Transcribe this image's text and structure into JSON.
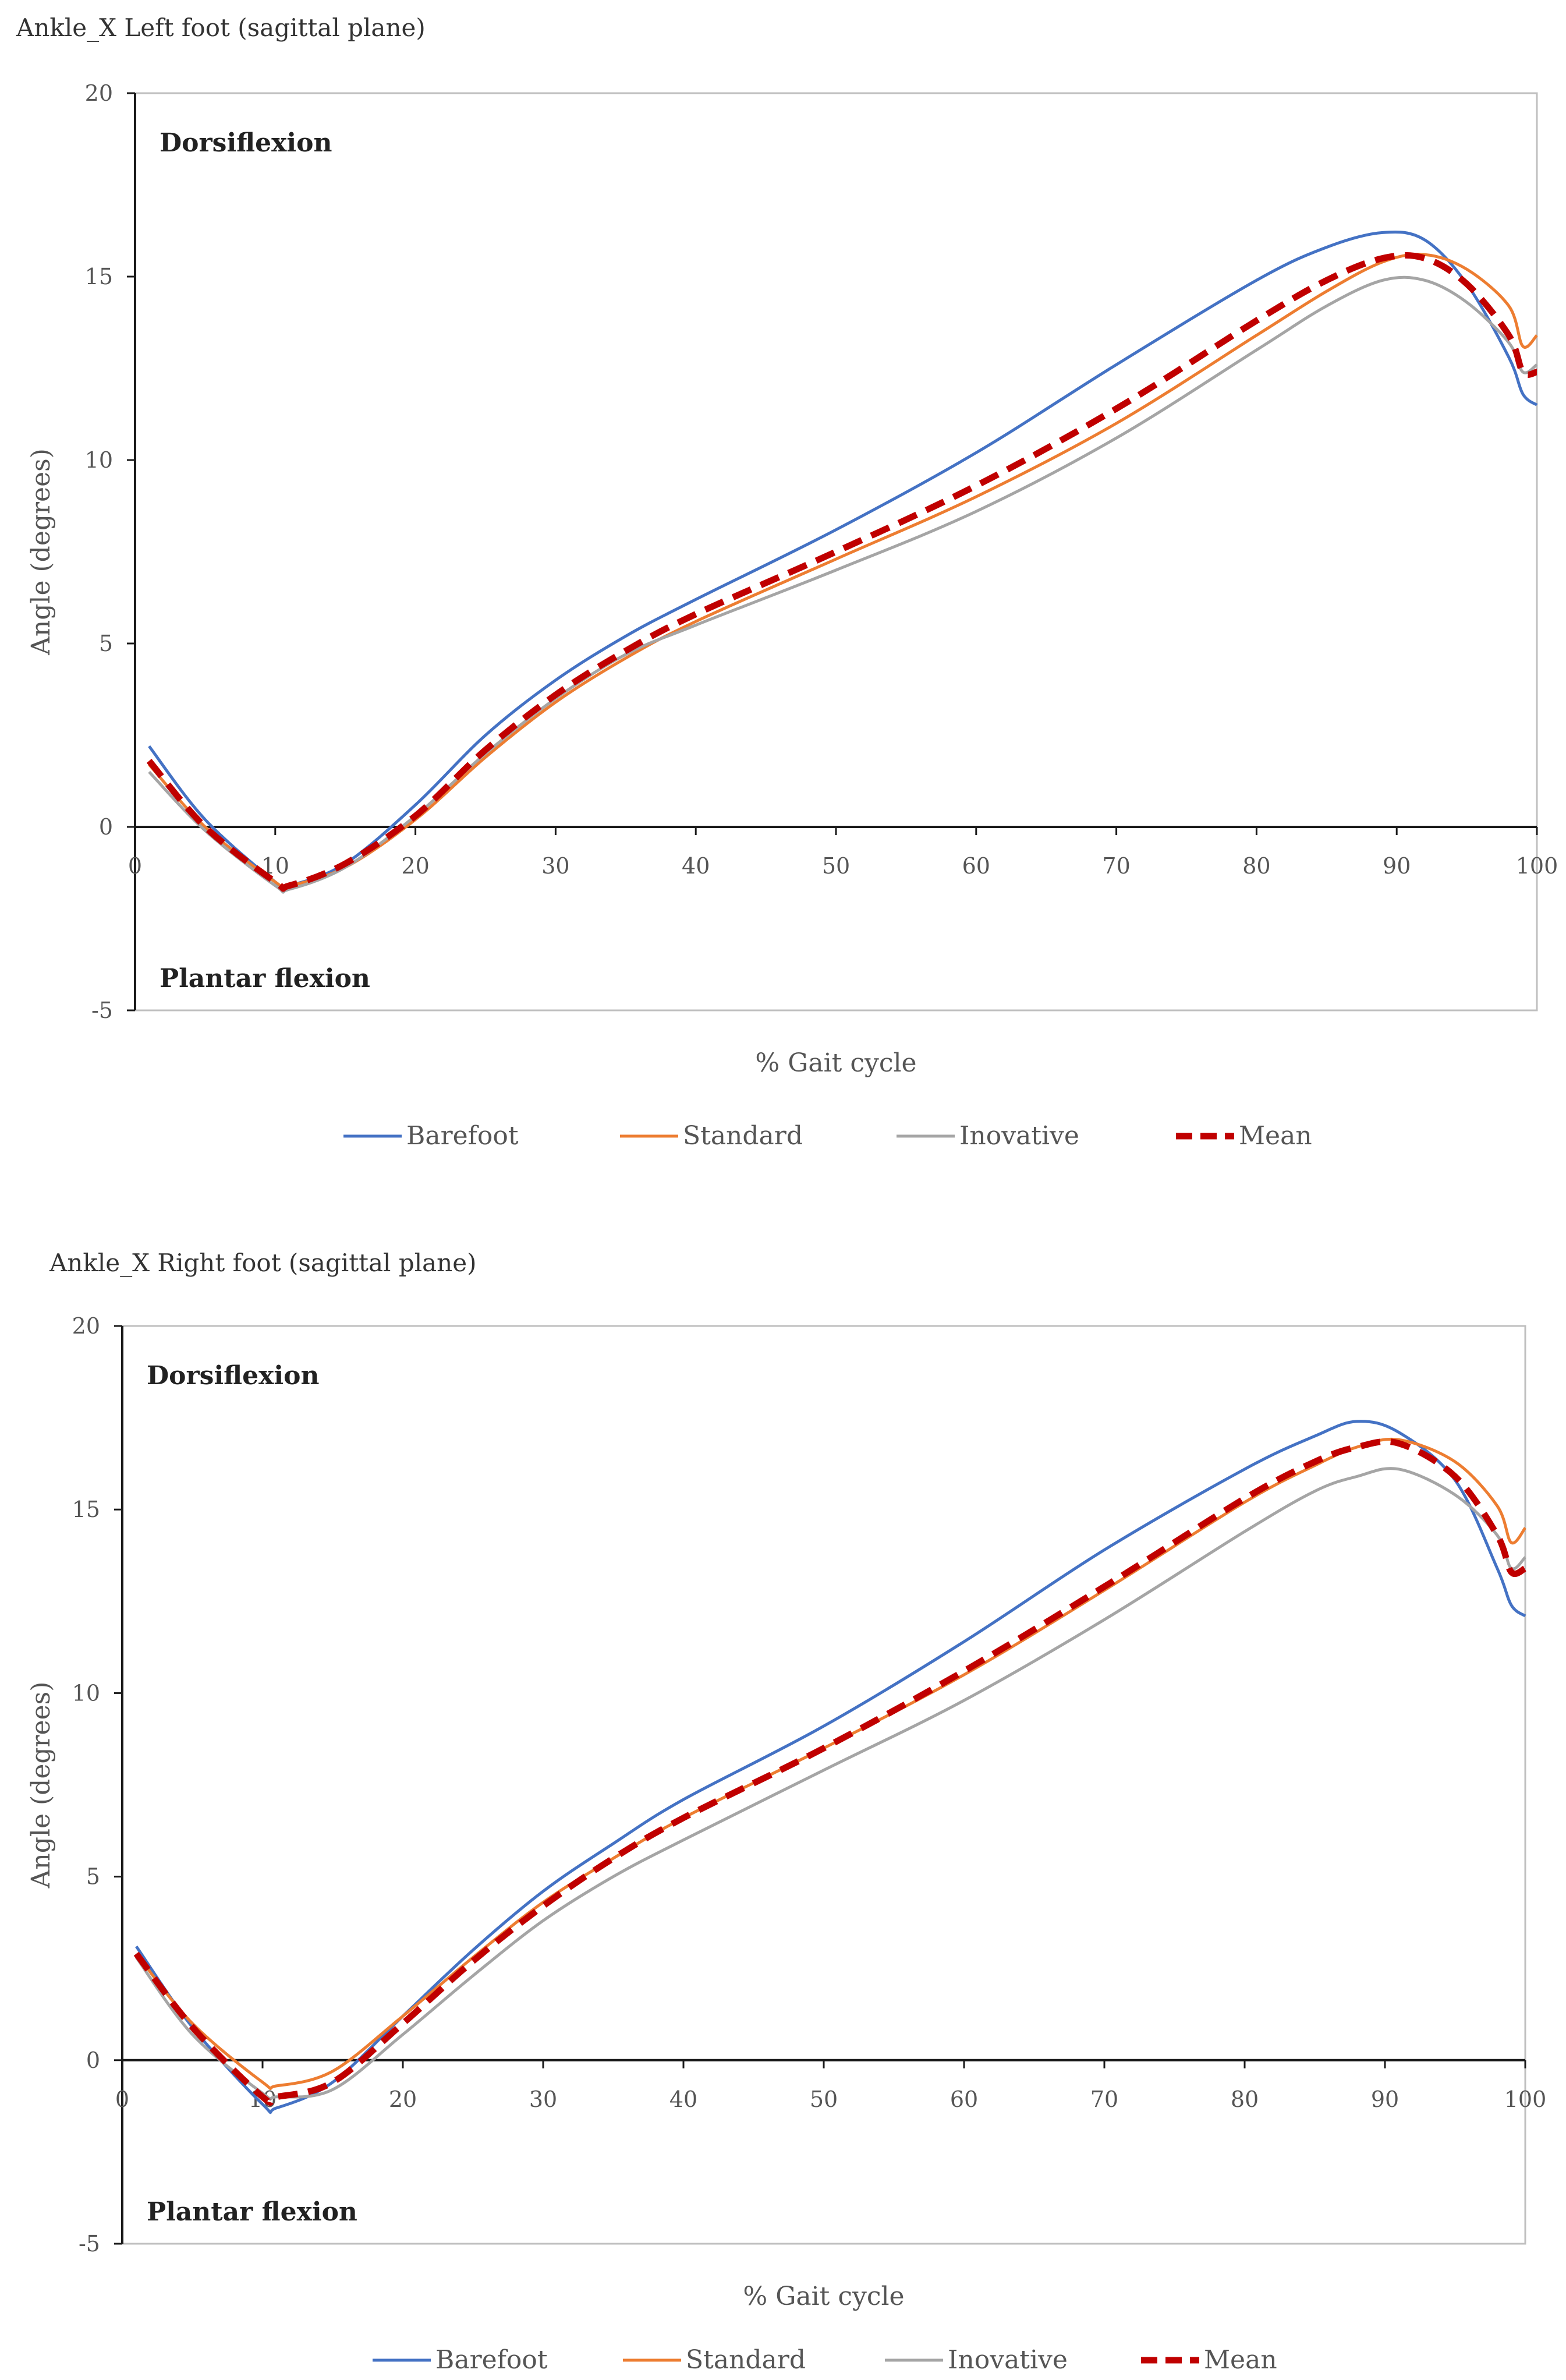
{
  "colors": {
    "Barefoot": "#4472C4",
    "Standard": "#ED7D31",
    "Inovative": "#A5A5A5",
    "Mean": "#C00000"
  },
  "chart_data": [
    {
      "type": "line",
      "title": "Ankle_X Left foot (sagittal plane)",
      "xlabel": "% Gait cycle",
      "ylabel": "Angle (degrees)",
      "xlim": [
        0,
        100
      ],
      "ylim": [
        -5,
        20
      ],
      "xticks": [
        0,
        10,
        20,
        30,
        40,
        50,
        60,
        70,
        80,
        90,
        100
      ],
      "yticks": [
        -5,
        0,
        5,
        10,
        15,
        20
      ],
      "annotations": {
        "top": "Dorsiflexion",
        "bottom": "Plantar flexion"
      },
      "legend_position": "bottom",
      "x": [
        1,
        5,
        10,
        11,
        15,
        20,
        25,
        30,
        35,
        40,
        50,
        60,
        70,
        80,
        85,
        89,
        92,
        95,
        98,
        99,
        100
      ],
      "series": [
        {
          "name": "Barefoot",
          "style": "solid",
          "values": [
            2.2,
            0.2,
            -1.5,
            -1.6,
            -1.0,
            0.6,
            2.5,
            4.0,
            5.2,
            6.2,
            8.1,
            10.2,
            12.6,
            14.9,
            15.8,
            16.2,
            16.0,
            14.8,
            12.8,
            11.8,
            11.5
          ]
        },
        {
          "name": "Standard",
          "style": "solid",
          "values": [
            1.7,
            0.0,
            -1.5,
            -1.6,
            -1.1,
            0.2,
            1.9,
            3.4,
            4.6,
            5.6,
            7.3,
            9.0,
            11.0,
            13.4,
            14.6,
            15.4,
            15.6,
            15.2,
            14.2,
            13.1,
            13.4
          ]
        },
        {
          "name": "Inovative",
          "style": "solid",
          "values": [
            1.5,
            -0.1,
            -1.6,
            -1.7,
            -1.1,
            0.3,
            2.0,
            3.5,
            4.7,
            5.5,
            7.0,
            8.6,
            10.6,
            13.0,
            14.2,
            14.9,
            14.9,
            14.3,
            13.2,
            12.4,
            12.6
          ]
        },
        {
          "name": "Mean",
          "style": "dashed",
          "values": [
            1.8,
            0.0,
            -1.5,
            -1.6,
            -1.0,
            0.3,
            2.1,
            3.6,
            4.8,
            5.8,
            7.5,
            9.3,
            11.4,
            13.8,
            14.9,
            15.5,
            15.5,
            14.8,
            13.4,
            12.4,
            12.4
          ]
        }
      ]
    },
    {
      "type": "line",
      "title": "Ankle_X Right foot (sagittal plane)",
      "xlabel": "% Gait cycle",
      "ylabel": "Angle (degrees)",
      "xlim": [
        0,
        100
      ],
      "ylim": [
        -5,
        20
      ],
      "xticks": [
        0,
        10,
        20,
        30,
        40,
        50,
        60,
        70,
        80,
        90,
        100
      ],
      "yticks": [
        -5,
        0,
        5,
        10,
        15,
        20
      ],
      "annotations": {
        "top": "Dorsiflexion",
        "bottom": "Plantar flexion"
      },
      "legend_position": "bottom",
      "x": [
        1,
        5,
        10,
        11,
        15,
        20,
        25,
        30,
        35,
        40,
        50,
        60,
        70,
        80,
        85,
        88,
        91,
        95,
        98,
        99,
        100
      ],
      "series": [
        {
          "name": "Barefoot",
          "style": "solid",
          "values": [
            3.1,
            0.9,
            -1.2,
            -1.3,
            -0.6,
            1.2,
            3.0,
            4.6,
            5.9,
            7.1,
            9.1,
            11.4,
            13.9,
            16.1,
            17.0,
            17.4,
            17.1,
            15.8,
            13.4,
            12.4,
            12.1
          ]
        },
        {
          "name": "Standard",
          "style": "solid",
          "values": [
            2.9,
            1.0,
            -0.6,
            -0.7,
            -0.3,
            1.2,
            2.8,
            4.3,
            5.5,
            6.6,
            8.5,
            10.5,
            12.8,
            15.2,
            16.2,
            16.7,
            16.9,
            16.3,
            15.1,
            14.1,
            14.5
          ]
        },
        {
          "name": "Inovative",
          "style": "solid",
          "values": [
            2.8,
            0.7,
            -0.9,
            -1.0,
            -0.8,
            0.7,
            2.3,
            3.8,
            5.0,
            6.0,
            7.9,
            9.8,
            12.0,
            14.4,
            15.5,
            15.9,
            16.1,
            15.4,
            14.3,
            13.4,
            13.7
          ]
        },
        {
          "name": "Mean",
          "style": "dashed",
          "values": [
            2.9,
            0.9,
            -1.0,
            -1.0,
            -0.6,
            1.0,
            2.7,
            4.2,
            5.5,
            6.6,
            8.5,
            10.6,
            12.9,
            15.3,
            16.3,
            16.7,
            16.8,
            15.9,
            14.3,
            13.3,
            13.4
          ]
        }
      ]
    }
  ]
}
